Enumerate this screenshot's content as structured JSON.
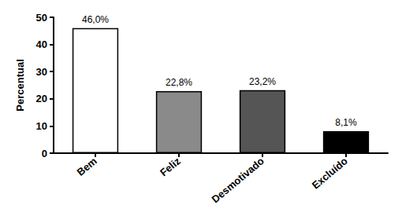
{
  "chart_data": {
    "type": "bar",
    "y_label": "Percentual",
    "categories": [
      "Bem",
      "Feliz",
      "Desmotivado",
      "Excluído"
    ],
    "values": [
      46.0,
      22.8,
      23.2,
      8.1
    ],
    "value_labels": [
      "46,0%",
      "22,8%",
      "23,2%",
      "8,1%"
    ],
    "colors": [
      "#ffffff",
      "#8a8a8a",
      "#555555",
      "#000000"
    ],
    "ylim": [
      0,
      50
    ],
    "yticks": [
      0,
      10,
      20,
      30,
      40,
      50
    ],
    "grid": false,
    "data_labels": true
  }
}
